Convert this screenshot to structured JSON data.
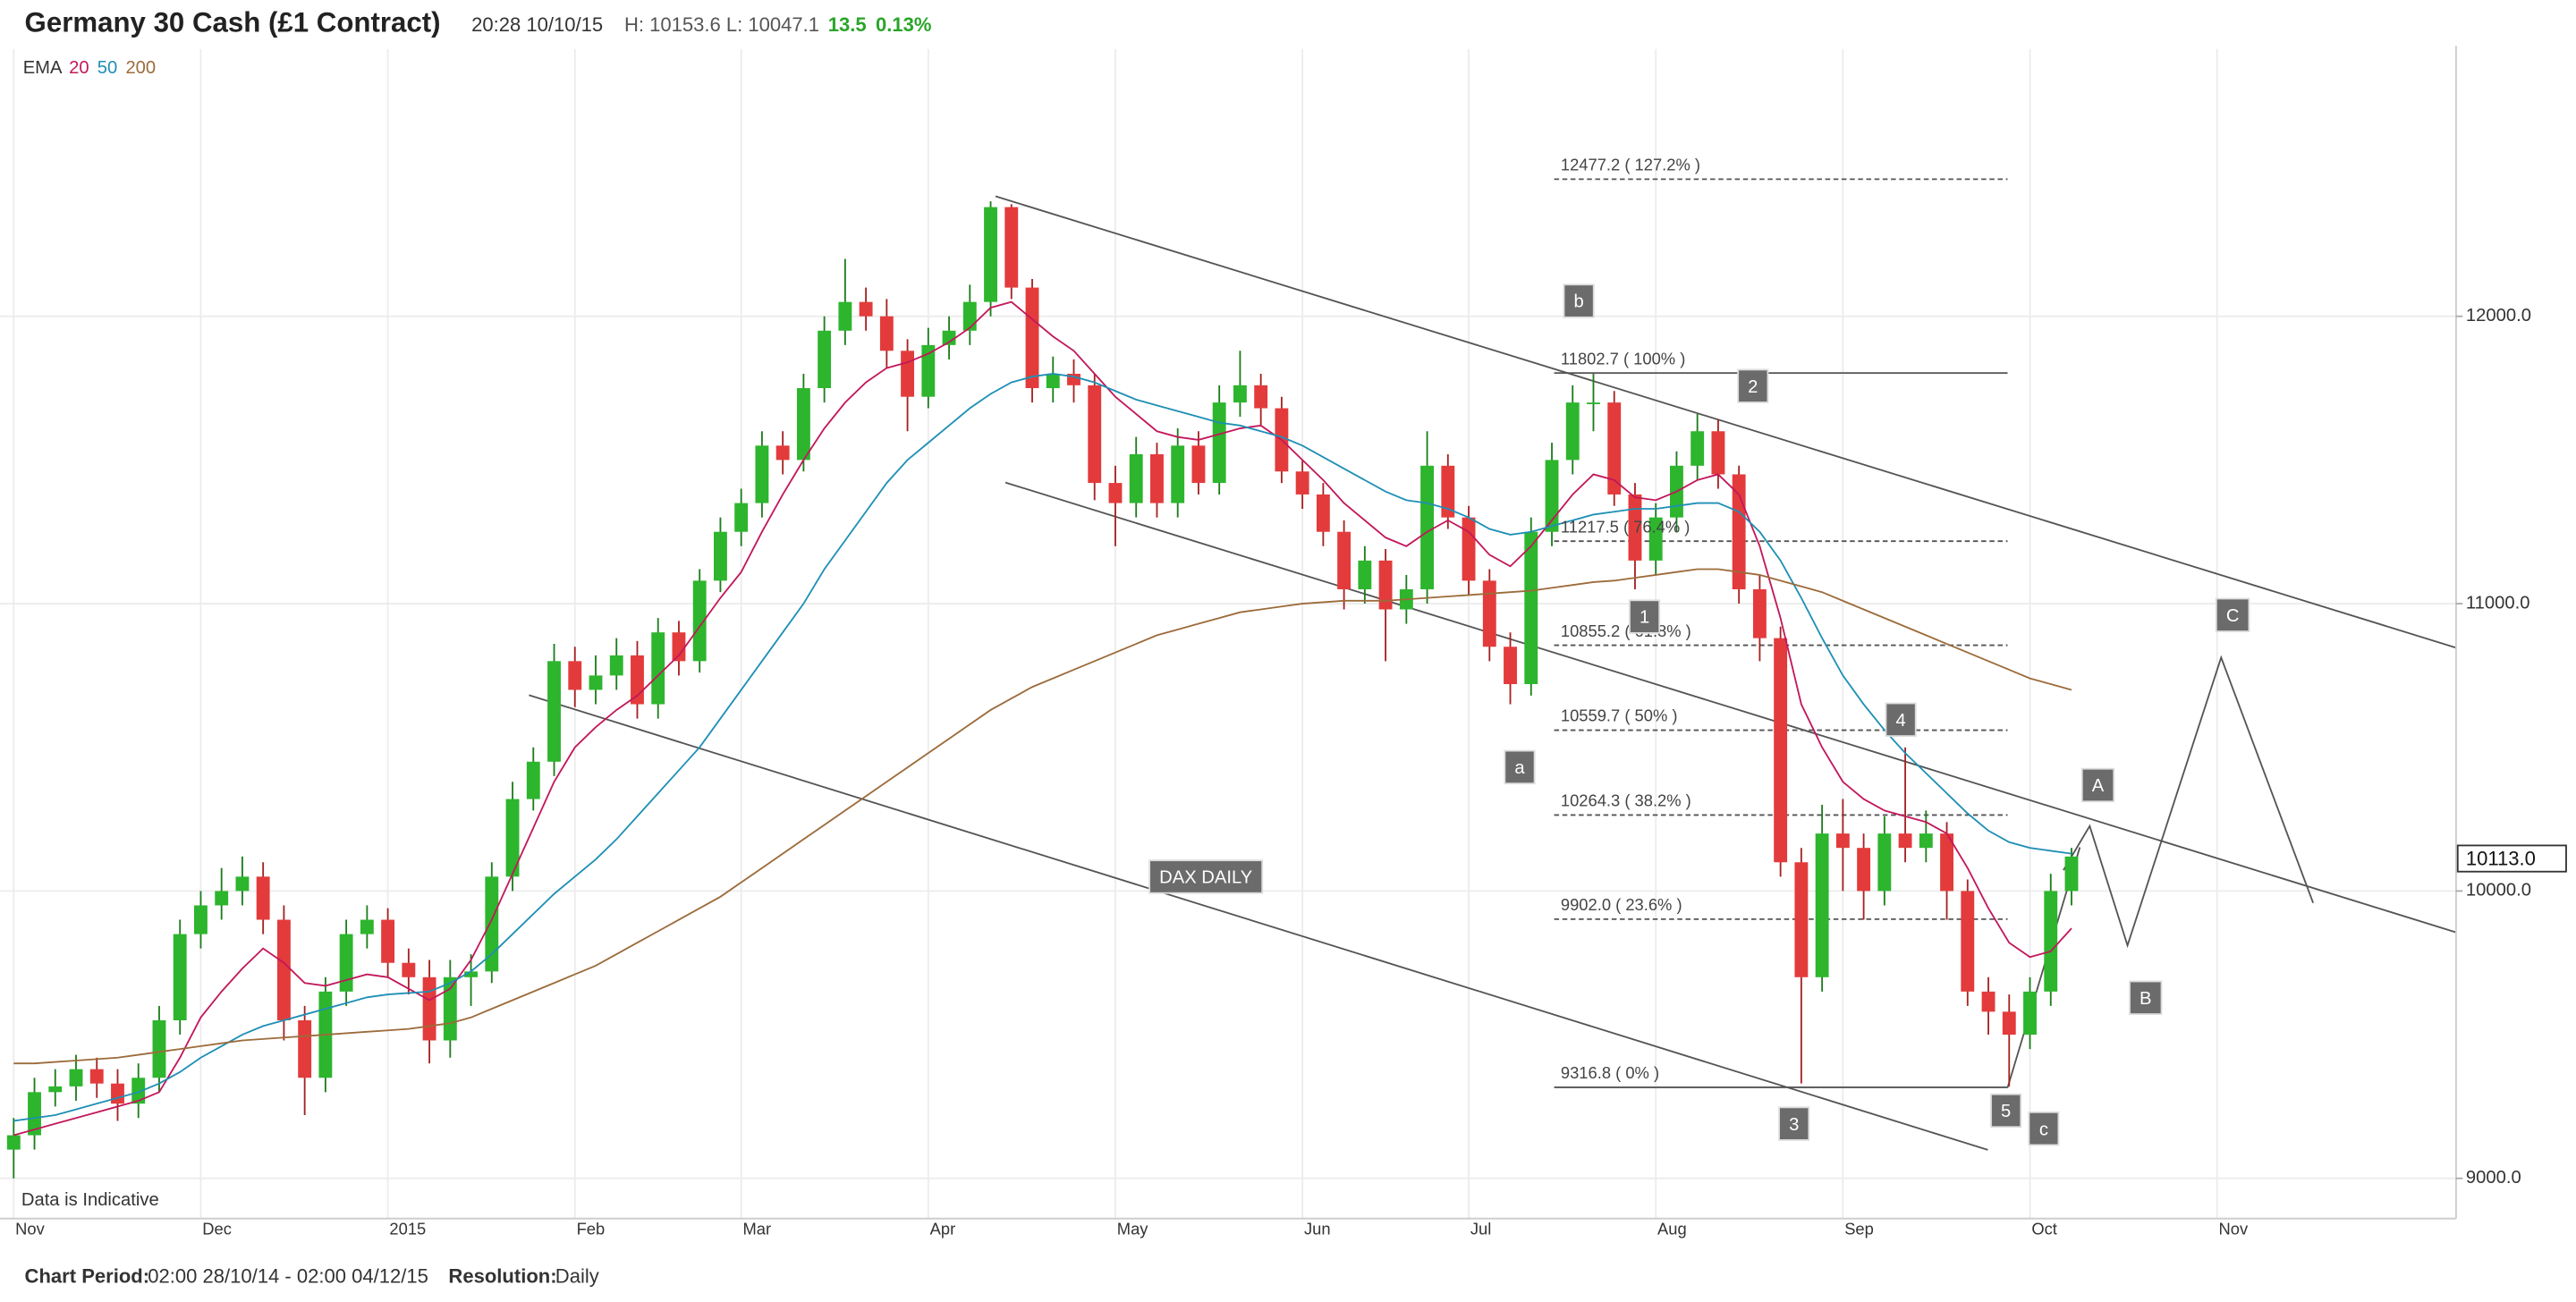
{
  "chart_data": {
    "type": "candlestick",
    "header": {
      "title": "Germany 30 Cash (£1 Contract)",
      "time": "20:28 10/10/15",
      "high": "H: 10153.6",
      "low": "L: 10047.1",
      "change": "13.5",
      "change_pct": "0.13%"
    },
    "legend_title": "EMA",
    "note": "Data is Indicative",
    "footer": {
      "period_label": "Chart Period:",
      "period": "02:00 28/10/14 - 02:00 04/12/15",
      "resolution_label": "Resolution:",
      "resolution": "Daily"
    },
    "up_color": "#2db52d",
    "down_color": "#e33b3b",
    "categories": [
      "Nov",
      null,
      null,
      null,
      null,
      null,
      null,
      null,
      null,
      "Dec",
      null,
      null,
      null,
      null,
      null,
      null,
      null,
      null,
      "2015",
      null,
      null,
      null,
      null,
      null,
      null,
      null,
      null,
      "Feb",
      null,
      null,
      null,
      null,
      null,
      null,
      null,
      "Mar",
      null,
      null,
      null,
      null,
      null,
      null,
      null,
      null,
      "Apr",
      null,
      null,
      null,
      null,
      null,
      null,
      null,
      null,
      "May",
      null,
      null,
      null,
      null,
      null,
      null,
      null,
      null,
      "Jun",
      null,
      null,
      null,
      null,
      null,
      null,
      null,
      "Jul",
      null,
      null,
      null,
      null,
      null,
      null,
      null,
      null,
      "Aug",
      null,
      null,
      null,
      null,
      null,
      null,
      null,
      null,
      "Sep",
      null,
      null,
      null,
      null,
      null,
      null,
      null,
      null,
      "Oct",
      null,
      null,
      null,
      null,
      null,
      null,
      null,
      null,
      "Nov",
      null,
      null,
      null,
      null,
      null,
      null,
      null,
      null,
      null,
      null,
      null
    ],
    "open": [
      9100,
      9150,
      9300,
      9320,
      9380,
      9330,
      9260,
      9350,
      9550,
      9850,
      9950,
      10000,
      10050,
      9900,
      9550,
      9350,
      9650,
      9850,
      9900,
      9750,
      9700,
      9480,
      9700,
      9720,
      10050,
      10320,
      10450,
      10800,
      10700,
      10750,
      10820,
      10650,
      10900,
      10800,
      11080,
      11250,
      11350,
      11550,
      11500,
      11750,
      11950,
      12050,
      12000,
      11880,
      11720,
      11900,
      11950,
      12050,
      12380,
      12100,
      11750,
      11800,
      11760,
      11420,
      11350,
      11520,
      11350,
      11550,
      11420,
      11700,
      11760,
      11680,
      11460,
      11380,
      11250,
      11050,
      11150,
      10980,
      11050,
      11480,
      11300,
      11080,
      10850,
      10720,
      11250,
      11500,
      11700,
      11700,
      11380,
      11150,
      11300,
      11480,
      11600,
      11450,
      11050,
      10880,
      10100,
      9700,
      10200,
      10150,
      10000,
      10200,
      10150,
      10200,
      10000,
      9650,
      9580,
      9500,
      9650,
      10000,
      null,
      null,
      null,
      null,
      null,
      null,
      null,
      null,
      null,
      null,
      null,
      null,
      null,
      null,
      null,
      null,
      null,
      null
    ],
    "high": [
      9210,
      9350,
      9380,
      9430,
      9420,
      9380,
      9400,
      9600,
      9900,
      10000,
      10080,
      10120,
      10100,
      9950,
      9600,
      9700,
      9900,
      9950,
      9940,
      9800,
      9760,
      9760,
      9780,
      10100,
      10380,
      10500,
      10860,
      10850,
      10820,
      10880,
      10870,
      10950,
      10940,
      11120,
      11300,
      11400,
      11600,
      11600,
      11800,
      12000,
      12200,
      12100,
      12060,
      11920,
      11960,
      12000,
      12110,
      12400,
      12390,
      12130,
      11860,
      11850,
      11800,
      11480,
      11580,
      11560,
      11610,
      11600,
      11760,
      11880,
      11800,
      11720,
      11500,
      11420,
      11290,
      11200,
      11190,
      11100,
      11600,
      11520,
      11340,
      11120,
      10900,
      11300,
      11560,
      11760,
      11800,
      11740,
      11420,
      11350,
      11530,
      11660,
      11640,
      11480,
      11100,
      10920,
      10150,
      10300,
      10320,
      10200,
      10260,
      10500,
      10280,
      10240,
      10040,
      9700,
      9640,
      9700,
      10060,
      10150,
      null,
      null,
      null,
      null,
      null,
      null,
      null,
      null,
      null,
      null,
      null,
      null,
      null,
      null,
      null,
      null,
      null,
      null
    ],
    "low": [
      9000,
      9100,
      9250,
      9270,
      9280,
      9200,
      9210,
      9300,
      9500,
      9800,
      9900,
      9950,
      9850,
      9480,
      9220,
      9300,
      9600,
      9800,
      9700,
      9640,
      9400,
      9420,
      9600,
      9680,
      10000,
      10280,
      10400,
      10640,
      10650,
      10700,
      10600,
      10600,
      10750,
      10760,
      11040,
      11200,
      11300,
      11450,
      11460,
      11700,
      11900,
      11950,
      11820,
      11600,
      11680,
      11850,
      11900,
      12000,
      12060,
      11700,
      11700,
      11700,
      11360,
      11200,
      11300,
      11300,
      11300,
      11380,
      11380,
      11650,
      11620,
      11420,
      11330,
      11200,
      10980,
      11000,
      10800,
      10930,
      11000,
      11260,
      11030,
      10800,
      10650,
      10680,
      11200,
      11450,
      11600,
      11340,
      11050,
      11100,
      11250,
      11430,
      11400,
      11000,
      10800,
      10050,
      9330,
      9650,
      10000,
      9900,
      9950,
      10100,
      10100,
      9900,
      9600,
      9500,
      9320,
      9450,
      9600,
      9950,
      null,
      null,
      null,
      null,
      null,
      null,
      null,
      null,
      null,
      null,
      null,
      null,
      null,
      null,
      null,
      null,
      null,
      null
    ],
    "close": [
      9150,
      9300,
      9320,
      9380,
      9330,
      9260,
      9350,
      9550,
      9850,
      9950,
      10000,
      10050,
      9900,
      9550,
      9350,
      9650,
      9850,
      9900,
      9750,
      9700,
      9480,
      9700,
      9720,
      10050,
      10320,
      10450,
      10800,
      10700,
      10750,
      10820,
      10650,
      10900,
      10800,
      11080,
      11250,
      11350,
      11550,
      11500,
      11750,
      11950,
      12050,
      12000,
      11880,
      11720,
      11900,
      11950,
      12050,
      12380,
      12100,
      11750,
      11800,
      11760,
      11420,
      11350,
      11520,
      11350,
      11550,
      11420,
      11700,
      11760,
      11680,
      11460,
      11380,
      11250,
      11050,
      11150,
      10980,
      11050,
      11480,
      11300,
      11080,
      10850,
      10720,
      11250,
      11500,
      11700,
      11700,
      11380,
      11150,
      11300,
      11480,
      11600,
      11450,
      11050,
      10880,
      10100,
      9700,
      10200,
      10150,
      10000,
      10200,
      10150,
      10200,
      10000,
      9650,
      9580,
      9500,
      9650,
      10000,
      10120,
      null,
      null,
      null,
      null,
      null,
      null,
      null,
      null,
      null,
      null,
      null,
      null,
      null,
      null,
      null,
      null,
      null,
      null
    ],
    "series": [
      {
        "name": "20",
        "color": "#c2185b",
        "values": [
          9150,
          9170,
          9190,
          9210,
          9230,
          9250,
          9270,
          9300,
          9420,
          9560,
          9650,
          9730,
          9800,
          9750,
          9680,
          9670,
          9690,
          9710,
          9700,
          9660,
          9620,
          9660,
          9760,
          9900,
          10060,
          10220,
          10380,
          10500,
          10570,
          10630,
          10680,
          10750,
          10820,
          10920,
          11020,
          11110,
          11250,
          11380,
          11500,
          11610,
          11700,
          11770,
          11820,
          11840,
          11870,
          11910,
          11960,
          12030,
          12050,
          11990,
          11930,
          11880,
          11800,
          11720,
          11660,
          11600,
          11580,
          11570,
          11590,
          11610,
          11620,
          11570,
          11500,
          11430,
          11350,
          11290,
          11230,
          11200,
          11250,
          11290,
          11250,
          11170,
          11130,
          11200,
          11290,
          11380,
          11450,
          11430,
          11370,
          11360,
          11390,
          11430,
          11450,
          11380,
          11200,
          10950,
          10650,
          10500,
          10380,
          10320,
          10280,
          10260,
          10240,
          10200,
          10080,
          9940,
          9820,
          9770,
          9790,
          9870,
          null,
          null,
          null,
          null,
          null,
          null,
          null,
          null,
          null,
          null,
          null,
          null,
          null,
          null,
          null,
          null,
          null,
          null
        ]
      },
      {
        "name": "50",
        "color": "#1f8fb5",
        "values": [
          9200,
          9210,
          9220,
          9240,
          9260,
          9280,
          9300,
          9330,
          9370,
          9420,
          9460,
          9500,
          9530,
          9550,
          9570,
          9590,
          9610,
          9630,
          9640,
          9645,
          9650,
          9680,
          9720,
          9780,
          9850,
          9920,
          9990,
          10050,
          10110,
          10180,
          10260,
          10340,
          10420,
          10500,
          10600,
          10700,
          10800,
          10900,
          11000,
          11120,
          11220,
          11320,
          11420,
          11500,
          11560,
          11620,
          11680,
          11730,
          11770,
          11790,
          11800,
          11790,
          11770,
          11740,
          11710,
          11690,
          11670,
          11650,
          11630,
          11620,
          11600,
          11580,
          11550,
          11510,
          11470,
          11430,
          11390,
          11360,
          11350,
          11330,
          11300,
          11260,
          11240,
          11250,
          11270,
          11290,
          11310,
          11320,
          11330,
          11330,
          11340,
          11350,
          11350,
          11320,
          11250,
          11150,
          11020,
          10880,
          10750,
          10650,
          10560,
          10480,
          10410,
          10340,
          10270,
          10210,
          10170,
          10150,
          10140,
          10130,
          null,
          null,
          null,
          null,
          null,
          null,
          null,
          null,
          null,
          null,
          null,
          null,
          null,
          null,
          null,
          null,
          null,
          null
        ]
      },
      {
        "name": "200",
        "color": "#9c6b3a",
        "values": [
          9400,
          9400,
          9405,
          9410,
          9415,
          9420,
          9430,
          9440,
          9450,
          9460,
          9470,
          9480,
          9485,
          9490,
          9495,
          9500,
          9505,
          9510,
          9515,
          9520,
          9530,
          9540,
          9560,
          9590,
          9620,
          9650,
          9680,
          9710,
          9740,
          9780,
          9820,
          9860,
          9900,
          9940,
          9980,
          10030,
          10080,
          10130,
          10180,
          10230,
          10280,
          10330,
          10380,
          10430,
          10480,
          10530,
          10580,
          10630,
          10670,
          10710,
          10740,
          10770,
          10800,
          10830,
          10860,
          10890,
          10910,
          10930,
          10950,
          10970,
          10980,
          10990,
          11000,
          11005,
          11010,
          11010,
          11010,
          11015,
          11020,
          11025,
          11030,
          11035,
          11040,
          11045,
          11055,
          11065,
          11075,
          11080,
          11090,
          11100,
          11110,
          11120,
          11120,
          11110,
          11100,
          11080,
          11060,
          11040,
          11010,
          10980,
          10950,
          10920,
          10890,
          10860,
          10830,
          10800,
          10770,
          10740,
          10720,
          10700,
          null,
          null,
          null,
          null,
          null,
          null,
          null,
          null,
          null,
          null,
          null,
          null,
          null,
          null,
          null,
          null,
          null,
          null
        ]
      }
    ],
    "ylim": [
      8860,
      12930
    ],
    "yticks": [
      {
        "value": 9000,
        "label": "9000.0"
      },
      {
        "value": 10000,
        "label": "10000.0"
      },
      {
        "value": 11000,
        "label": "11000.0"
      },
      {
        "value": 12000,
        "label": "12000.0"
      }
    ],
    "grid": true,
    "last_price": {
      "value": 10113.0,
      "label": "10113.0"
    },
    "fib_levels": [
      {
        "value": 12477.2,
        "label": "12477.2 ( 127.2% )",
        "dashed": true
      },
      {
        "value": 11802.7,
        "label": "11802.7 ( 100% )",
        "dashed": false
      },
      {
        "value": 11217.5,
        "label": "11217.5 ( 76.4% )",
        "dashed": true
      },
      {
        "value": 10855.2,
        "label": "10855.2 ( 61.8% )",
        "dashed": true
      },
      {
        "value": 10559.7,
        "label": "10559.7 ( 50% )",
        "dashed": true
      },
      {
        "value": 10264.3,
        "label": "10264.3 ( 38.2% )",
        "dashed": true
      },
      {
        "value": 9902.0,
        "label": "9902.0 ( 23.6% )",
        "dashed": true
      },
      {
        "value": 9316.8,
        "label": "9316.8 ( 0% )",
        "dashed": false
      }
    ],
    "annotations": [
      "b",
      "2",
      "1",
      "a",
      "4",
      "3",
      "5",
      "c",
      "A",
      "B",
      "C",
      "DAX DAILY"
    ]
  }
}
